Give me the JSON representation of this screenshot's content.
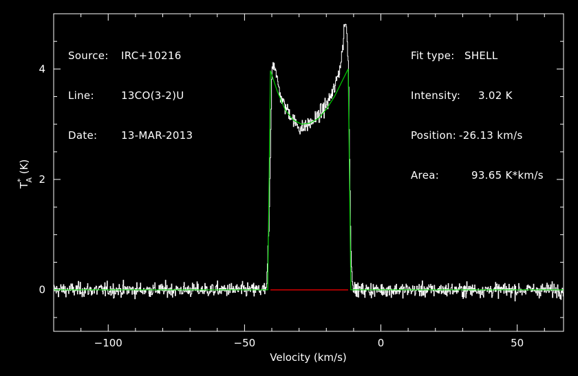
{
  "chart_data": {
    "type": "line",
    "xlabel": "Velocity (km/s)",
    "ylabel": "T*A (K)",
    "xlim": [
      -120,
      67
    ],
    "ylim": [
      -0.75,
      5.0
    ],
    "xticks": [
      -100,
      -50,
      0,
      50
    ],
    "yticks": [
      0,
      2,
      4
    ],
    "grid": false,
    "colors": {
      "background": "#000000",
      "spectrum": "#ffffff",
      "fit": "#00d000",
      "baseline": "#ff0000",
      "frame": "#ffffff"
    },
    "annotations_left": [
      {
        "label": "Source:",
        "value": "IRC+10216"
      },
      {
        "label": "Line:",
        "value": "13CO(3-2)U"
      },
      {
        "label": "Date:",
        "value": "13-MAR-2013"
      }
    ],
    "annotations_right": [
      {
        "label": "Fit type:",
        "value": "SHELL"
      },
      {
        "label": "Intensity:",
        "value": "3.02 K"
      },
      {
        "label": "Position:",
        "value": "-26.13 km/s"
      },
      {
        "label": "Area:",
        "value": "93.65 K*km/s"
      }
    ],
    "series": [
      {
        "role": "fit",
        "x": [
          -120,
          -41.5,
          -40.5,
          -38,
          -35,
          -32,
          -29,
          -26.1,
          -23,
          -20,
          -17,
          -14,
          -12,
          -11,
          -9,
          67
        ],
        "y": [
          0,
          0,
          3.97,
          3.6,
          3.25,
          3.07,
          3.0,
          3.02,
          3.1,
          3.27,
          3.5,
          3.8,
          4.0,
          0,
          0,
          0
        ]
      },
      {
        "role": "spectrum",
        "noise_rms": 0.12,
        "x": [
          -120,
          -42,
          -41,
          -40,
          -39,
          -38,
          -37,
          -36,
          -35,
          -34,
          -33,
          -32,
          -31,
          -30,
          -29,
          -28,
          -27,
          -26,
          -25,
          -24,
          -23,
          -22,
          -21,
          -20,
          -19,
          -18,
          -17,
          -16,
          -15,
          -14,
          -13.5,
          -13,
          -12.5,
          -12,
          -11,
          -10,
          67
        ],
        "y": [
          0,
          0,
          1.3,
          4.1,
          4.1,
          3.75,
          3.55,
          3.4,
          3.3,
          3.25,
          3.15,
          3.05,
          3.0,
          2.95,
          2.92,
          2.95,
          3.0,
          3.02,
          3.05,
          3.1,
          3.15,
          3.2,
          3.28,
          3.35,
          3.45,
          3.55,
          3.65,
          3.85,
          4.05,
          4.4,
          4.8,
          4.85,
          4.6,
          4.1,
          0.5,
          0,
          0
        ]
      }
    ],
    "baseline_segment": {
      "x": [
        -40.5,
        -12
      ],
      "y": 0
    }
  }
}
